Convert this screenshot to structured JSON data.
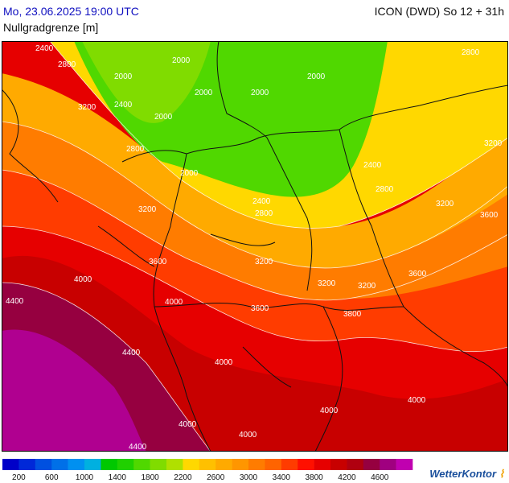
{
  "header": {
    "datetime": "Mo, 23.06.2025 19:00 UTC",
    "model_run": "ICON (DWD) So 12 + 31h",
    "parameter": "Nullgradgrenze [m]"
  },
  "map": {
    "contour_labels": [
      {
        "text": "2400"
      },
      {
        "text": "2800"
      },
      {
        "text": "2000"
      },
      {
        "text": "2000"
      },
      {
        "text": "2000"
      },
      {
        "text": "2000"
      },
      {
        "text": "2400"
      },
      {
        "text": "3200"
      },
      {
        "text": "2000"
      },
      {
        "text": "2800"
      },
      {
        "text": "2000"
      },
      {
        "text": "2000"
      },
      {
        "text": "2800"
      },
      {
        "text": "3200"
      },
      {
        "text": "2400"
      },
      {
        "text": "2800"
      },
      {
        "text": "2400"
      },
      {
        "text": "3200"
      },
      {
        "text": "2800"
      },
      {
        "text": "3200"
      },
      {
        "text": "3600"
      },
      {
        "text": "3600"
      },
      {
        "text": "3200"
      },
      {
        "text": "4000"
      },
      {
        "text": "3200"
      },
      {
        "text": "3200"
      },
      {
        "text": "3600"
      },
      {
        "text": "4400"
      },
      {
        "text": "4000"
      },
      {
        "text": "3600"
      },
      {
        "text": "3800"
      },
      {
        "text": "4400"
      },
      {
        "text": "4000"
      },
      {
        "text": "4000"
      },
      {
        "text": "4000"
      },
      {
        "text": "4000"
      },
      {
        "text": "4000"
      },
      {
        "text": "4400"
      }
    ]
  },
  "legend": {
    "colors": [
      "#0000c8",
      "#0028d8",
      "#0050e0",
      "#0070e8",
      "#0090f0",
      "#00b0e0",
      "#00c800",
      "#20d000",
      "#50d800",
      "#80dc00",
      "#b0e000",
      "#ffd800",
      "#ffc000",
      "#ffaa00",
      "#ff9600",
      "#ff7c00",
      "#ff6400",
      "#ff3c00",
      "#ff1000",
      "#e60000",
      "#c80000",
      "#b00010",
      "#960040",
      "#a00080",
      "#c000b0"
    ],
    "tick_labels": [
      "200",
      "600",
      "1000",
      "1400",
      "1800",
      "2200",
      "2600",
      "3000",
      "3400",
      "3800",
      "4200",
      "4600"
    ]
  },
  "logo": {
    "text": "WetterKontor"
  }
}
